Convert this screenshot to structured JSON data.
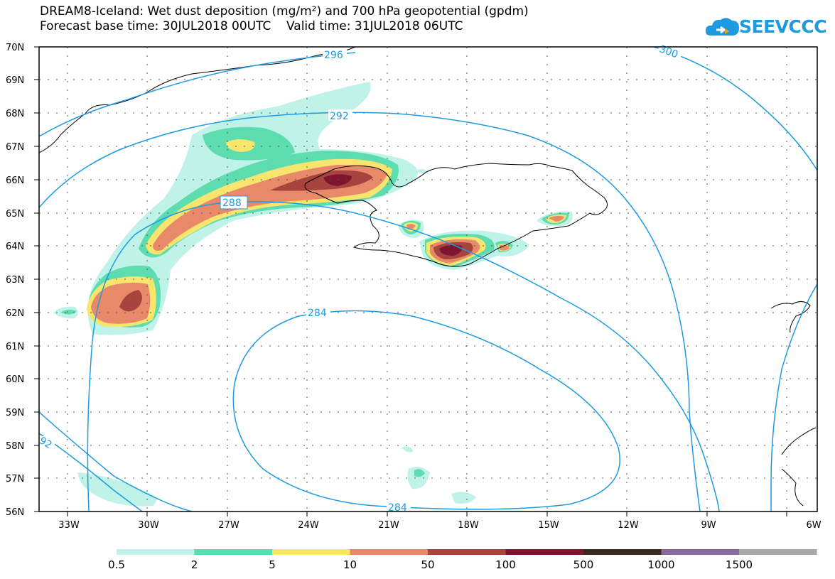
{
  "title": {
    "line1": "DREAM8-Iceland: Wet dust deposition (mg/m²) and 700 hPa geopotential (gpdm)",
    "line2": "Forecast base time: 30JUL2018 00UTC    Valid time: 31JUL2018 06UTC"
  },
  "logo": {
    "text": "SEEVCCC"
  },
  "axes": {
    "lat_labels": [
      "70N",
      "69N",
      "68N",
      "67N",
      "66N",
      "65N",
      "64N",
      "63N",
      "62N",
      "61N",
      "60N",
      "59N",
      "58N",
      "57N",
      "56N"
    ],
    "lon_labels": [
      "33W",
      "30W",
      "27W",
      "24W",
      "21W",
      "18W",
      "15W",
      "12W",
      "9W",
      "6W"
    ]
  },
  "contours": {
    "labels": [
      "296",
      "300",
      "292",
      "288",
      "284",
      "284",
      "92"
    ]
  },
  "legend": {
    "labels": [
      "0.5",
      "2",
      "5",
      "10",
      "50",
      "100",
      "500",
      "1000",
      "1500"
    ],
    "colors": [
      "#bff2e8",
      "#5ddcb0",
      "#f7e56e",
      "#e8896a",
      "#a8433e",
      "#7d1530",
      "#3a2a1e",
      "#8a6a9c",
      "#a8a8a8"
    ]
  },
  "colors": {
    "contour": "#1e9be0",
    "coast": "#000000"
  }
}
